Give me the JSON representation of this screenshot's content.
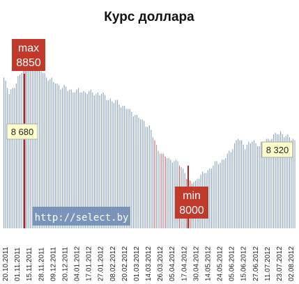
{
  "chart_data": {
    "type": "bar",
    "title": "Курс доллара",
    "xlabel": "",
    "ylabel": "",
    "ylim": [
      7700,
      8950
    ],
    "grid": false,
    "watermark": "http://select.by",
    "x_tick_labels": [
      "20.10.2011",
      "01.11.2011",
      "15.11.2011",
      "28.11.2011",
      "09.12.2011",
      "20.12.2011",
      "04.01.2012",
      "17.01.2012",
      "27.01.2012",
      "08.02.2012",
      "20.02.2012",
      "01.03.2012",
      "14.03.2012",
      "26.03.2012",
      "05.04.2012",
      "17.04.2012",
      "30.04.2012",
      "14.05.2012",
      "24.05.2012",
      "05.06.2012",
      "15.06.2012",
      "27.06.2012",
      "11.07.2012",
      "23.07.2012",
      "02.08.2012"
    ],
    "keypoints": [
      [
        0,
        8700
      ],
      [
        3,
        8620
      ],
      [
        6,
        8640
      ],
      [
        10,
        8760
      ],
      [
        12,
        8850
      ],
      [
        15,
        8820
      ],
      [
        20,
        8760
      ],
      [
        26,
        8700
      ],
      [
        30,
        8660
      ],
      [
        36,
        8630
      ],
      [
        42,
        8620
      ],
      [
        48,
        8610
      ],
      [
        55,
        8600
      ],
      [
        60,
        8560
      ],
      [
        66,
        8530
      ],
      [
        72,
        8480
      ],
      [
        78,
        8420
      ],
      [
        82,
        8380
      ],
      [
        86,
        8250
      ],
      [
        90,
        8180
      ],
      [
        94,
        8160
      ],
      [
        98,
        8140
      ],
      [
        102,
        8080
      ],
      [
        104,
        8000
      ],
      [
        108,
        8020
      ],
      [
        112,
        8060
      ],
      [
        116,
        8100
      ],
      [
        120,
        8140
      ],
      [
        124,
        8160
      ],
      [
        128,
        8220
      ],
      [
        132,
        8300
      ],
      [
        136,
        8250
      ],
      [
        140,
        8280
      ],
      [
        144,
        8260
      ],
      [
        148,
        8290
      ],
      [
        152,
        8320
      ],
      [
        156,
        8340
      ],
      [
        160,
        8310
      ],
      [
        164,
        8290
      ]
    ],
    "series_color": "#8fa6bf",
    "highlight_color": "#e06060",
    "highlight_indices": [
      12,
      85,
      89,
      91,
      99,
      103,
      105
    ],
    "annotations": {
      "max": {
        "label": "max",
        "value": "8850"
      },
      "min": {
        "label": "min",
        "value": "8000"
      },
      "start": {
        "value": "8 680"
      },
      "end": {
        "value": "8 320"
      }
    }
  }
}
